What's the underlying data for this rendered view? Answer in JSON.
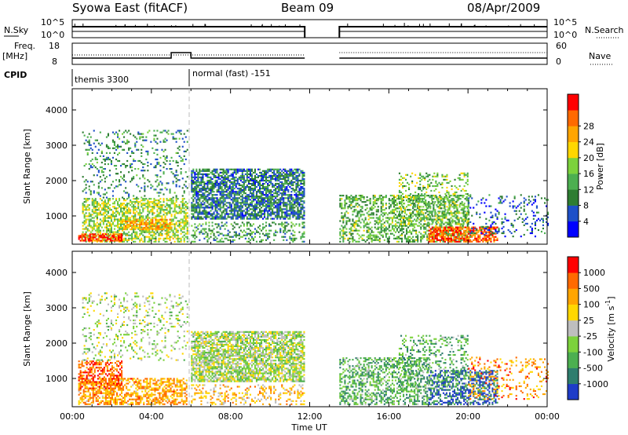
{
  "header": {
    "title_left": "Syowa East (fitACF)",
    "title_center": "Beam 09",
    "title_right": "08/Apr/2009"
  },
  "params": {
    "nsky_label": "N.Sky",
    "nsearch_label": "N.Search",
    "freq_label_1": "Freq.",
    "freq_label_2": "[MHz]",
    "nave_label": "Nave",
    "cpid_label": "CPID",
    "nsky_ticks": [
      "10^5",
      "10^0"
    ],
    "nsearch_ticks": [
      "10^5",
      "10^0"
    ],
    "freq_ticks": [
      "18",
      "8"
    ],
    "nave_ticks": [
      "60",
      "0"
    ],
    "cpid_segments": [
      {
        "start_hour": 0,
        "end_hour": 6,
        "label": "themis 3300"
      },
      {
        "start_hour": 6,
        "end_hour": 24,
        "label": "normal (fast) -151"
      }
    ]
  },
  "chart_data": [
    {
      "type": "heatmap",
      "name": "power",
      "xlabel": "",
      "ylabel": "Slant Range [km]",
      "xlim": [
        0,
        24
      ],
      "ylim": [
        200,
        4600
      ],
      "yticks": [
        1000,
        2000,
        3000,
        4000
      ],
      "colorbar": {
        "label": "Power [dB]",
        "ticks": [
          "4",
          "8",
          "12",
          "16",
          "20",
          "24",
          "28"
        ],
        "colors": [
          "#0000ff",
          "#1e50c8",
          "#2e7d32",
          "#4caf50",
          "#7cd23c",
          "#ffd700",
          "#ffa500",
          "#ff6a00",
          "#ff0000"
        ],
        "range": [
          0,
          32
        ]
      },
      "data_gap_hours": [
        11.75,
        13.5
      ],
      "regions": [
        {
          "t0": 0.5,
          "t1": 5.8,
          "r0": 250,
          "r1": 1500,
          "level": 0.5,
          "density": 0.55
        },
        {
          "t0": 0.3,
          "t1": 2.5,
          "r0": 280,
          "r1": 500,
          "level": 0.9,
          "density": 0.7
        },
        {
          "t0": 2.5,
          "t1": 5.0,
          "r0": 600,
          "r1": 900,
          "level": 0.7,
          "density": 0.7
        },
        {
          "t0": 0.5,
          "t1": 5.8,
          "r0": 1500,
          "r1": 3400,
          "level": 0.3,
          "density": 0.15
        },
        {
          "t0": 6.0,
          "t1": 11.75,
          "r0": 900,
          "r1": 2300,
          "level": 0.25,
          "density": 0.7
        },
        {
          "t0": 6.0,
          "t1": 11.75,
          "r0": 250,
          "r1": 800,
          "level": 0.35,
          "density": 0.3
        },
        {
          "t0": 13.5,
          "t1": 20.0,
          "r0": 250,
          "r1": 1600,
          "level": 0.4,
          "density": 0.45
        },
        {
          "t0": 18.0,
          "t1": 21.5,
          "r0": 250,
          "r1": 700,
          "level": 0.85,
          "density": 0.7
        },
        {
          "t0": 16.5,
          "t1": 20.0,
          "r0": 700,
          "r1": 2200,
          "level": 0.45,
          "density": 0.25
        },
        {
          "t0": 20.0,
          "t1": 24.0,
          "r0": 400,
          "r1": 1600,
          "level": 0.2,
          "density": 0.15
        }
      ]
    },
    {
      "type": "heatmap",
      "name": "velocity",
      "xlabel": "Time UT",
      "ylabel": "Slant Range [km]",
      "xlim": [
        0,
        24
      ],
      "ylim": [
        200,
        4600
      ],
      "yticks": [
        1000,
        2000,
        3000,
        4000
      ],
      "xticks": [
        "00:00",
        "04:00",
        "08:00",
        "12:00",
        "16:00",
        "20:00",
        "00:00"
      ],
      "colorbar": {
        "label": "Velocity [m s^-1]",
        "ticks": [
          "1000",
          "500",
          "100",
          "25",
          "-25",
          "-100",
          "-500",
          "-1000"
        ],
        "colors": [
          "#1e3cc8",
          "#2e7d6e",
          "#4caf50",
          "#7cd23c",
          "#bebebe",
          "#ffd700",
          "#ffa500",
          "#ff6a00",
          "#ff0000"
        ],
        "range": [
          -1000,
          1000
        ]
      },
      "data_gap_hours": [
        11.75,
        13.5
      ],
      "regions": [
        {
          "t0": 0.3,
          "t1": 5.8,
          "r0": 250,
          "r1": 1000,
          "level": 0.72,
          "density": 0.55
        },
        {
          "t0": 0.3,
          "t1": 2.5,
          "r0": 700,
          "r1": 1500,
          "level": 0.85,
          "density": 0.5
        },
        {
          "t0": 0.5,
          "t1": 5.8,
          "r0": 1500,
          "r1": 3400,
          "level": 0.45,
          "density": 0.15
        },
        {
          "t0": 6.0,
          "t1": 11.75,
          "r0": 900,
          "r1": 2300,
          "level": 0.45,
          "density": 0.7
        },
        {
          "t0": 6.0,
          "t1": 11.75,
          "r0": 250,
          "r1": 800,
          "level": 0.65,
          "density": 0.25
        },
        {
          "t0": 13.5,
          "t1": 18.0,
          "r0": 250,
          "r1": 1600,
          "level": 0.3,
          "density": 0.45
        },
        {
          "t0": 18.0,
          "t1": 21.5,
          "r0": 250,
          "r1": 1200,
          "level": 0.1,
          "density": 0.5
        },
        {
          "t0": 16.5,
          "t1": 20.0,
          "r0": 700,
          "r1": 2200,
          "level": 0.3,
          "density": 0.25
        },
        {
          "t0": 20.0,
          "t1": 24.0,
          "r0": 400,
          "r1": 1600,
          "level": 0.75,
          "density": 0.15
        }
      ]
    }
  ]
}
